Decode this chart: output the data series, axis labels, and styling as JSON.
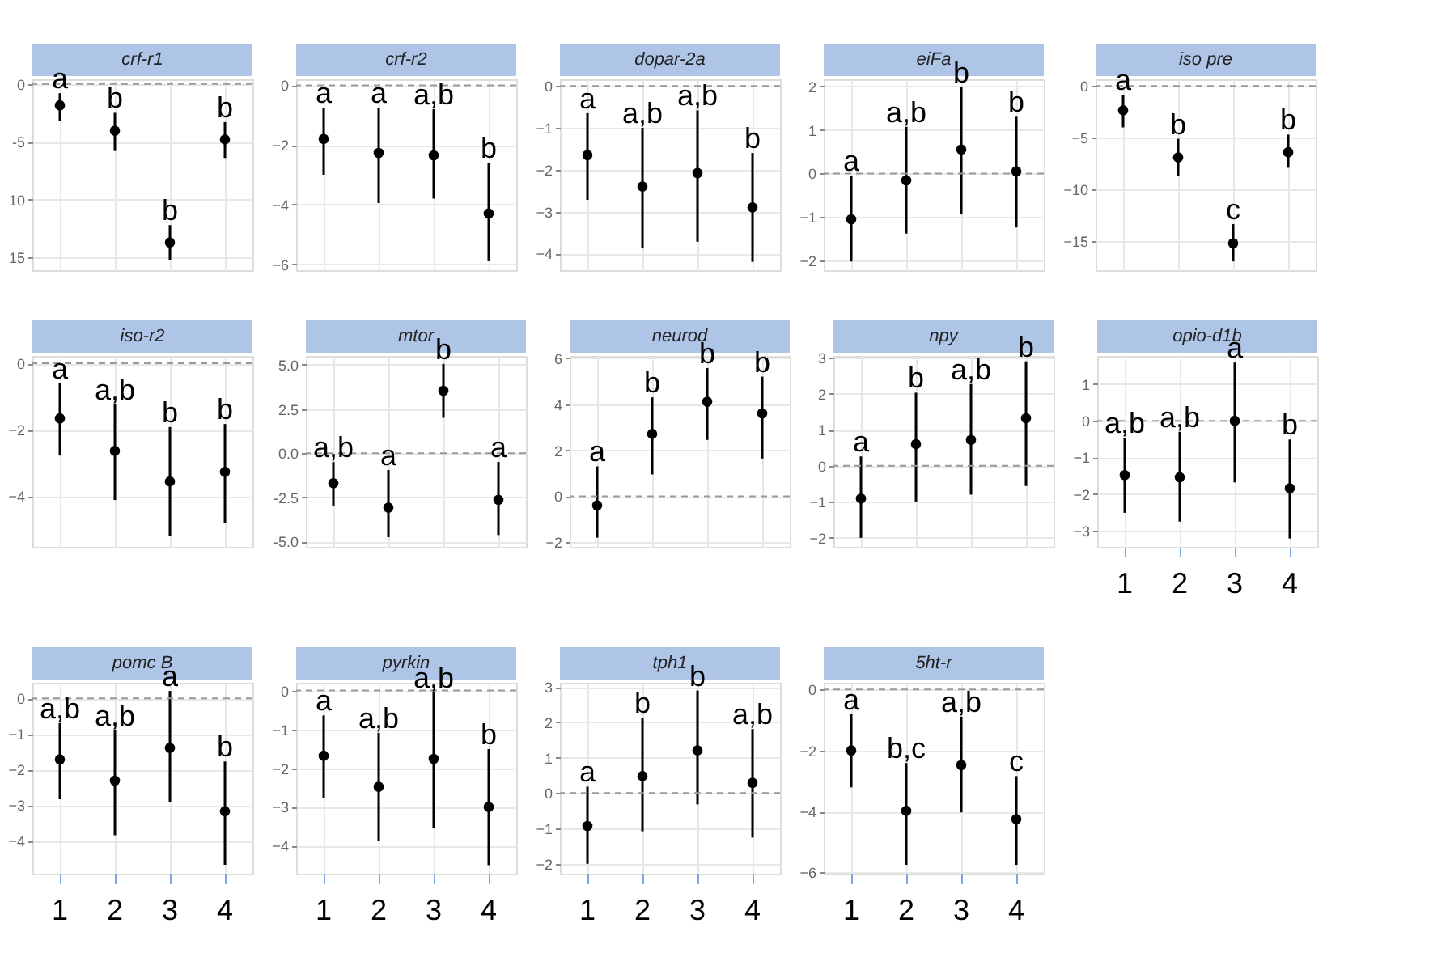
{
  "chart_data": [
    {
      "type": "scatter",
      "title": "crf-r1",
      "categories": [
        "1",
        "2",
        "3",
        "4"
      ],
      "color": "#000000",
      "values": [
        -1.85,
        -4.05,
        -13.7,
        -4.8
      ],
      "errors": [
        [
          -3.2,
          -0.8
        ],
        [
          -5.8,
          -2.5
        ],
        [
          -15.2,
          -12.2
        ],
        [
          -6.4,
          -3.3
        ]
      ],
      "ylim": [
        -16.1,
        0.4
      ],
      "yticks": [
        0,
        {
          "value": -5,
          "label": "-5"
        },
        {
          "value": -10,
          "label": "10"
        },
        {
          "value": -15,
          "label": "15"
        }
      ],
      "annotations": [
        {
          "text": "a",
          "x": "1",
          "y": -0.8
        },
        {
          "text": "b",
          "x": "2",
          "y": -2.5
        },
        {
          "text": "b",
          "x": "3",
          "y": -12.2
        },
        {
          "text": "b",
          "x": "4",
          "y": -3.3
        }
      ],
      "ref_lines": [
        {
          "axis": "y",
          "value": 0,
          "line_style": "dashed",
          "color": "#999999"
        }
      ],
      "grid": true,
      "marker": "circle",
      "tick_labels": "y"
    },
    {
      "type": "scatter",
      "title": "crf-r2",
      "categories": [
        "1",
        "2",
        "3",
        "4"
      ],
      "color": "#000000",
      "values": [
        -1.8,
        -2.27,
        -2.35,
        -4.3
      ],
      "errors": [
        [
          -3.0,
          -0.75
        ],
        [
          -3.95,
          -0.75
        ],
        [
          -3.8,
          -0.8
        ],
        [
          -5.9,
          -2.6
        ]
      ],
      "ylim": [
        -6.2,
        0.2
      ],
      "yticks": [
        0,
        -2,
        -4,
        -6
      ],
      "annotations": [
        {
          "text": "a",
          "x": "1",
          "y": -0.75
        },
        {
          "text": "a",
          "x": "2",
          "y": -0.75
        },
        {
          "text": "a,b",
          "x": "3",
          "y": -0.8
        },
        {
          "text": "b",
          "x": "4",
          "y": -2.6
        }
      ],
      "ref_lines": [
        {
          "axis": "y",
          "value": 0,
          "line_style": "dashed",
          "color": "#999999"
        }
      ],
      "grid": true,
      "marker": "circle",
      "tick_labels": "y"
    },
    {
      "type": "scatter",
      "title": "dopar-2a",
      "categories": [
        "1",
        "2",
        "3",
        "4"
      ],
      "color": "#000000",
      "values": [
        -1.65,
        -2.4,
        -2.08,
        -2.9
      ],
      "errors": [
        [
          -2.72,
          -0.65
        ],
        [
          -3.88,
          -1.0
        ],
        [
          -3.72,
          -0.58
        ],
        [
          -4.2,
          -1.6
        ]
      ],
      "ylim": [
        -4.4,
        0.16
      ],
      "yticks": [
        0,
        -1,
        -2,
        -3,
        -4
      ],
      "annotations": [
        {
          "text": "a",
          "x": "1",
          "y": -0.65
        },
        {
          "text": "a,b",
          "x": "2",
          "y": -1.0
        },
        {
          "text": "a,b",
          "x": "3",
          "y": -0.58
        },
        {
          "text": "b",
          "x": "4",
          "y": -1.6
        }
      ],
      "ref_lines": [
        {
          "axis": "y",
          "value": 0,
          "line_style": "dashed",
          "color": "#999999"
        }
      ],
      "grid": true,
      "marker": "circle",
      "tick_labels": "y"
    },
    {
      "type": "scatter",
      "title": "eiFa",
      "categories": [
        "1",
        "2",
        "3",
        "4"
      ],
      "color": "#000000",
      "values": [
        -1.05,
        -0.16,
        0.55,
        0.05
      ],
      "errors": [
        [
          -2.02,
          -0.05
        ],
        [
          -1.38,
          1.07
        ],
        [
          -0.94,
          1.98
        ],
        [
          -1.24,
          1.3
        ]
      ],
      "ylim": [
        -2.22,
        2.16
      ],
      "yticks": [
        -2,
        -1,
        0,
        1,
        2
      ],
      "annotations": [
        {
          "text": "a",
          "x": "1",
          "y": -0.05
        },
        {
          "text": "a,b",
          "x": "2",
          "y": 1.07
        },
        {
          "text": "b",
          "x": "3",
          "y": 1.98
        },
        {
          "text": "b",
          "x": "4",
          "y": 1.3
        }
      ],
      "ref_lines": [
        {
          "axis": "y",
          "value": 0,
          "line_style": "dashed",
          "color": "#999999"
        }
      ],
      "grid": true,
      "marker": "circle",
      "tick_labels": "y"
    },
    {
      "type": "scatter",
      "title": "iso pre",
      "categories": [
        "1",
        "2",
        "3",
        "4"
      ],
      "color": "#000000",
      "values": [
        -2.35,
        -6.9,
        -15.2,
        -6.4
      ],
      "errors": [
        [
          -4.0,
          -0.87
        ],
        [
          -8.7,
          -5.1
        ],
        [
          -16.95,
          -13.35
        ],
        [
          -7.9,
          -4.7
        ]
      ],
      "ylim": [
        -17.8,
        0.65
      ],
      "yticks": [
        0,
        -5,
        -10,
        -15
      ],
      "annotations": [
        {
          "text": "a",
          "x": "1",
          "y": -0.87
        },
        {
          "text": "b",
          "x": "2",
          "y": -5.1
        },
        {
          "text": "c",
          "x": "3",
          "y": -13.35
        },
        {
          "text": "b",
          "x": "4",
          "y": -4.7
        }
      ],
      "ref_lines": [
        {
          "axis": "y",
          "value": 0,
          "line_style": "dashed",
          "color": "#999999"
        }
      ],
      "grid": true,
      "marker": "circle",
      "tick_labels": "y"
    },
    {
      "type": "scatter",
      "title": "iso-r2",
      "categories": [
        "1",
        "2",
        "3",
        "4"
      ],
      "color": "#000000",
      "values": [
        -1.66,
        -2.64,
        -3.56,
        -3.27
      ],
      "errors": [
        [
          -2.78,
          -0.6
        ],
        [
          -4.12,
          -1.23
        ],
        [
          -5.2,
          -1.92
        ],
        [
          -4.8,
          -1.83
        ]
      ],
      "ylim": [
        -5.53,
        0.22
      ],
      "yticks": [
        0,
        -2,
        -4
      ],
      "annotations": [
        {
          "text": "a",
          "x": "1",
          "y": -0.6
        },
        {
          "text": "a,b",
          "x": "2",
          "y": -1.23
        },
        {
          "text": "b",
          "x": "3",
          "y": -1.92
        },
        {
          "text": "b",
          "x": "4",
          "y": -1.83
        }
      ],
      "ref_lines": [
        {
          "axis": "y",
          "value": 0,
          "line_style": "dashed",
          "color": "#999999"
        }
      ],
      "grid": true,
      "marker": "circle",
      "tick_labels": "y"
    },
    {
      "type": "scatter",
      "title": "mtor",
      "categories": [
        "1",
        "2",
        "3",
        "4"
      ],
      "color": "#000000",
      "values": [
        -1.7,
        -3.08,
        3.53,
        -2.64
      ],
      "errors": [
        [
          -2.98,
          -0.5
        ],
        [
          -4.75,
          -0.95
        ],
        [
          2.0,
          5.05
        ],
        [
          -4.63,
          -0.5
        ]
      ],
      "ylim": [
        -5.3,
        5.5
      ],
      "yticks": [
        {
          "value": 5,
          "label": "5.0"
        },
        {
          "value": 2.5,
          "label": "2.5"
        },
        {
          "value": 0,
          "label": "0.0"
        },
        {
          "value": -2.5,
          "label": "-2.5"
        },
        {
          "value": -5,
          "label": "-5.0"
        }
      ],
      "annotations": [
        "a,b",
        "a",
        "b",
        "a"
      ],
      "ref_lines": [
        {
          "axis": "y",
          "value": 0,
          "line_style": "dashed",
          "color": "#999999"
        }
      ],
      "grid": true,
      "marker": "circle",
      "tick_labels": "y"
    },
    {
      "type": "scatter",
      "title": "neurod",
      "categories": [
        "1",
        "2",
        "3",
        "4"
      ],
      "color": "#000000",
      "values": [
        -0.4,
        2.71,
        4.11,
        3.6
      ],
      "errors": [
        [
          -1.8,
          1.3
        ],
        [
          0.95,
          4.3
        ],
        [
          2.45,
          5.57
        ],
        [
          1.64,
          5.2
        ]
      ],
      "ylim": [
        -2.2,
        6.1
      ],
      "yticks": [
        -2,
        0,
        2,
        4,
        6
      ],
      "annotations": [
        "a",
        "b",
        "b",
        "b"
      ],
      "ref_lines": [
        {
          "axis": "y",
          "value": 0,
          "line_style": "dashed",
          "color": "#999999"
        }
      ],
      "grid": true,
      "marker": "circle",
      "tick_labels": "y"
    },
    {
      "type": "scatter",
      "title": "npy",
      "categories": [
        "1",
        "2",
        "3",
        "4"
      ],
      "color": "#000000",
      "values": [
        -0.91,
        0.6,
        0.72,
        1.32
      ],
      "errors": [
        [
          -2.0,
          0.26
        ],
        [
          -0.99,
          2.03
        ],
        [
          -0.8,
          2.27
        ],
        [
          -0.56,
          2.9
        ]
      ],
      "ylim": [
        -2.25,
        3.05
      ],
      "yticks": [
        -2,
        -1,
        0,
        1,
        2,
        3
      ],
      "annotations": [
        "a",
        "b",
        "a,b",
        "b"
      ],
      "ref_lines": [
        {
          "axis": "y",
          "value": 0,
          "line_style": "dashed",
          "color": "#999999"
        }
      ],
      "grid": true,
      "marker": "circle",
      "tick_labels": "y"
    },
    {
      "type": "scatter",
      "title": "opio-d1b",
      "categories": [
        "1",
        "2",
        "3",
        "4"
      ],
      "color": "#000000",
      "values": [
        -1.48,
        -1.54,
        0.0,
        -1.84
      ],
      "errors": [
        [
          -2.51,
          -0.47
        ],
        [
          -2.75,
          -0.3
        ],
        [
          -1.68,
          1.59
        ],
        [
          -3.21,
          -0.51
        ]
      ],
      "ylim": [
        -3.44,
        1.77
      ],
      "yticks": [
        1,
        0,
        -1,
        -2,
        -3
      ],
      "annotations": [
        {
          "text": "a,b",
          "x": "1",
          "y": -0.47
        },
        {
          "text": "a,b",
          "x": "2",
          "y": -0.3
        },
        {
          "text": "a",
          "x": "3",
          "y": 1.59
        },
        {
          "text": "b",
          "x": "4",
          "y": -0.51
        }
      ],
      "ref_lines": [
        {
          "axis": "y",
          "value": 0,
          "line_style": "dashed",
          "color": "#999999"
        }
      ],
      "grid": true,
      "marker": "circle"
    },
    {
      "type": "scatter",
      "title": "pomc B",
      "categories": [
        "1",
        "2",
        "3",
        "4"
      ],
      "color": "#000000",
      "values": [
        -1.71,
        -2.31,
        -1.39,
        -3.17
      ],
      "errors": [
        [
          -2.83,
          -0.69
        ],
        [
          -3.84,
          -0.9
        ],
        [
          -2.9,
          0.21
        ],
        [
          -4.67,
          -1.77
        ]
      ],
      "ylim": [
        -4.92,
        0.44
      ],
      "yticks": [
        0,
        -1,
        -2,
        -3,
        -4
      ],
      "annotations": [
        {
          "text": "a,b",
          "x": "1",
          "y": -0.69
        },
        {
          "text": "a,b",
          "x": "2",
          "y": -0.9
        },
        {
          "text": "a",
          "x": "3",
          "y": 0.21
        },
        {
          "text": "b",
          "x": "4",
          "y": -1.77
        }
      ],
      "ref_lines": [
        {
          "axis": "y",
          "value": 0,
          "line_style": "dashed",
          "color": "#999999"
        }
      ],
      "grid": true,
      "marker": "circle"
    },
    {
      "type": "scatter",
      "title": "pyrkin",
      "categories": [
        "1",
        "2",
        "3",
        "4"
      ],
      "color": "#000000",
      "values": [
        -1.68,
        -2.48,
        -1.76,
        -3.0
      ],
      "errors": [
        [
          -2.76,
          -0.64
        ],
        [
          -3.88,
          -1.09
        ],
        [
          -3.55,
          -0.05
        ],
        [
          -4.5,
          -1.51
        ]
      ],
      "ylim": [
        -4.72,
        0.2
      ],
      "yticks": [
        0,
        -1,
        -2,
        -3,
        -4
      ],
      "annotations": [
        {
          "text": "a",
          "x": "1",
          "y": -0.64
        },
        {
          "text": "a,b",
          "x": "2",
          "y": -1.09
        },
        {
          "text": "a,b",
          "x": "3",
          "y": -0.05
        },
        {
          "text": "b",
          "x": "4",
          "y": -1.51
        }
      ],
      "ref_lines": [
        {
          "axis": "y",
          "value": 0,
          "line_style": "dashed",
          "color": "#999999"
        }
      ],
      "grid": true,
      "marker": "circle"
    },
    {
      "type": "scatter",
      "title": "tph1",
      "categories": [
        "1",
        "2",
        "3",
        "4"
      ],
      "color": "#000000",
      "values": [
        -0.93,
        0.48,
        1.21,
        0.29
      ],
      "errors": [
        [
          -2.0,
          0.18
        ],
        [
          -1.08,
          2.13
        ],
        [
          -0.32,
          2.9
        ],
        [
          -1.26,
          1.81
        ]
      ],
      "ylim": [
        -2.28,
        3.12
      ],
      "yticks": [
        -2,
        -1,
        0,
        1,
        2,
        3
      ],
      "annotations": [
        {
          "text": "a",
          "x": "1",
          "y": 0.18
        },
        {
          "text": "b",
          "x": "2",
          "y": 2.13
        },
        {
          "text": "b",
          "x": "3",
          "y": 2.9
        },
        {
          "text": "a,b",
          "x": "4",
          "y": 1.81
        }
      ],
      "ref_lines": [
        {
          "axis": "y",
          "value": 0,
          "line_style": "dashed",
          "color": "#999999"
        }
      ],
      "grid": true,
      "marker": "circle"
    },
    {
      "type": "scatter",
      "title": "5ht-r",
      "categories": [
        "1",
        "2",
        "3",
        "4"
      ],
      "color": "#000000",
      "values": [
        -2.0,
        -3.98,
        -2.48,
        -4.25
      ],
      "errors": [
        [
          -3.21,
          -0.81
        ],
        [
          -5.75,
          -2.41
        ],
        [
          -4.03,
          -0.89
        ],
        [
          -5.75,
          -2.84
        ]
      ],
      "ylim": [
        -6.04,
        0.22
      ],
      "yticks": [
        0,
        -2,
        -4,
        -6
      ],
      "annotations": [
        {
          "text": "a",
          "x": "1",
          "y": -0.81
        },
        {
          "text": "b,c",
          "x": "2",
          "y": -2.41
        },
        {
          "text": "a,b",
          "x": "3",
          "y": -0.89
        },
        {
          "text": "c",
          "x": "4",
          "y": -2.84
        }
      ],
      "ref_lines": [
        {
          "axis": "y",
          "value": 0,
          "line_style": "dashed",
          "color": "#999999"
        }
      ],
      "grid": true,
      "marker": "circle"
    }
  ]
}
